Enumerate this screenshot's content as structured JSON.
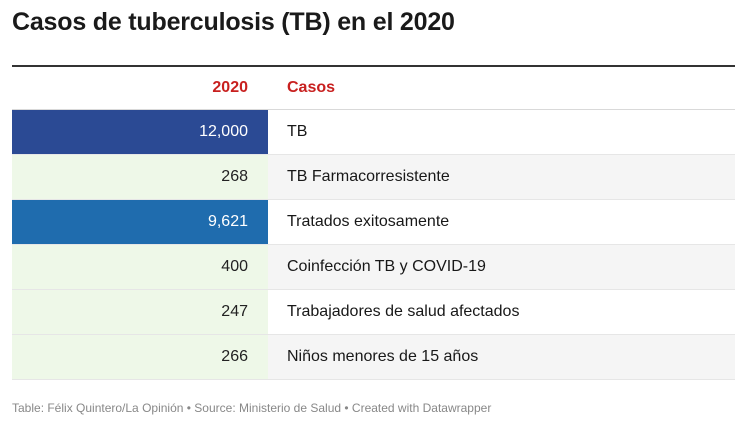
{
  "title": "Casos de tuberculosis (TB) en el 2020",
  "chart_data": {
    "type": "table",
    "title": "Casos de tuberculosis (TB) en el 2020",
    "columns": [
      "2020",
      "Casos"
    ],
    "rows": [
      {
        "value": 12000,
        "value_label": "12,000",
        "label": "TB",
        "fill": "#2b4a94",
        "text_color": "#ffffff"
      },
      {
        "value": 268,
        "value_label": "268",
        "label": "TB Farmacorresistente",
        "fill": "#eef8e8",
        "text_color": "#222222"
      },
      {
        "value": 9621,
        "value_label": "9,621",
        "label": "Tratados exitosamente",
        "fill": "#1f6cae",
        "text_color": "#ffffff"
      },
      {
        "value": 400,
        "value_label": "400",
        "label": "Coinfección TB y COVID-19",
        "fill": "#eef8e8",
        "text_color": "#222222"
      },
      {
        "value": 247,
        "value_label": "247",
        "label": "Trabajadores de salud afectados",
        "fill": "#eef8e8",
        "text_color": "#222222"
      },
      {
        "value": 266,
        "value_label": "266",
        "label": "Niños menores de 15 años",
        "fill": "#eef8e8",
        "text_color": "#222222"
      }
    ]
  },
  "footer": "Table: Félix Quintero/La Opinión • Source: Ministerio de Salud • Created with Datawrapper",
  "colors": {
    "header_text": "#c8201f",
    "heat_high": "#2b4a94",
    "heat_mid": "#1f6cae",
    "heat_low": "#eef8e8"
  }
}
